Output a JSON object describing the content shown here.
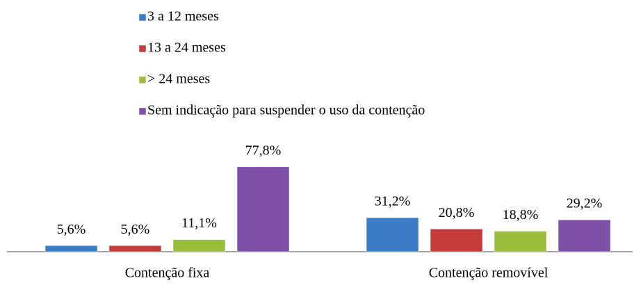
{
  "chart_data": {
    "type": "bar",
    "categories": [
      "Contenção fixa",
      "Contenção removível"
    ],
    "series": [
      {
        "name": "3 a 12 meses",
        "color": "#3c7cc6",
        "values": [
          5.6,
          31.2
        ],
        "value_labels": [
          "5,6%",
          "31,2%"
        ]
      },
      {
        "name": "13 a 24 meses",
        "color": "#c33b3a",
        "values": [
          5.6,
          20.8
        ],
        "value_labels": [
          "5,6%",
          "20,8%"
        ]
      },
      {
        "name": "> 24 meses",
        "color": "#9bbd3c",
        "values": [
          11.1,
          18.8
        ],
        "value_labels": [
          "11,1%",
          "18,8%"
        ]
      },
      {
        "name": "Sem indicação para suspender o uso da contenção",
        "color": "#7e50a8",
        "values": [
          77.8,
          29.2
        ],
        "value_labels": [
          "77,8%",
          "29,2%"
        ]
      }
    ],
    "legend": "top"
  }
}
